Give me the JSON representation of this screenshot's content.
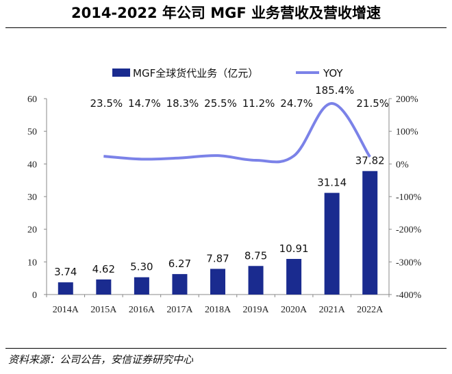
{
  "title": "2014-2022 年公司 MGF 业务营收及营收增速",
  "source": "资料来源：公司公告，安信证券研究中心",
  "colors": {
    "bar": "#1a2b8f",
    "line": "#7b82e8",
    "axis": "#888888"
  },
  "chart_data": {
    "type": "bar+line",
    "categories": [
      "2014A",
      "2015A",
      "2016A",
      "2017A",
      "2018A",
      "2019A",
      "2020A",
      "2021A",
      "2022A"
    ],
    "series": [
      {
        "name": "MGF全球货代业务（亿元）",
        "type": "bar",
        "axis": "left",
        "values": [
          3.74,
          4.62,
          5.3,
          6.27,
          7.87,
          8.75,
          10.91,
          31.14,
          37.82
        ],
        "labels": [
          "3.74",
          "4.62",
          "5.30",
          "6.27",
          "7.87",
          "8.75",
          "10.91",
          "31.14",
          "37.82"
        ]
      },
      {
        "name": "YOY",
        "type": "line",
        "axis": "right",
        "values": [
          null,
          23.5,
          14.7,
          18.3,
          25.5,
          11.2,
          24.7,
          185.4,
          21.5
        ],
        "labels": [
          "",
          "23.5%",
          "14.7%",
          "18.3%",
          "25.5%",
          "11.2%",
          "24.7%",
          "185.4%",
          "21.5%"
        ]
      }
    ],
    "left_axis": {
      "ylim": [
        0,
        60
      ],
      "ticks": [
        "0",
        "10",
        "20",
        "30",
        "40",
        "50",
        "60"
      ]
    },
    "right_axis": {
      "ylim": [
        -400,
        200
      ],
      "ticks": [
        "-400%",
        "-300%",
        "-200%",
        "-100%",
        "0%",
        "100%",
        "200%"
      ]
    },
    "legend_position": "top"
  }
}
